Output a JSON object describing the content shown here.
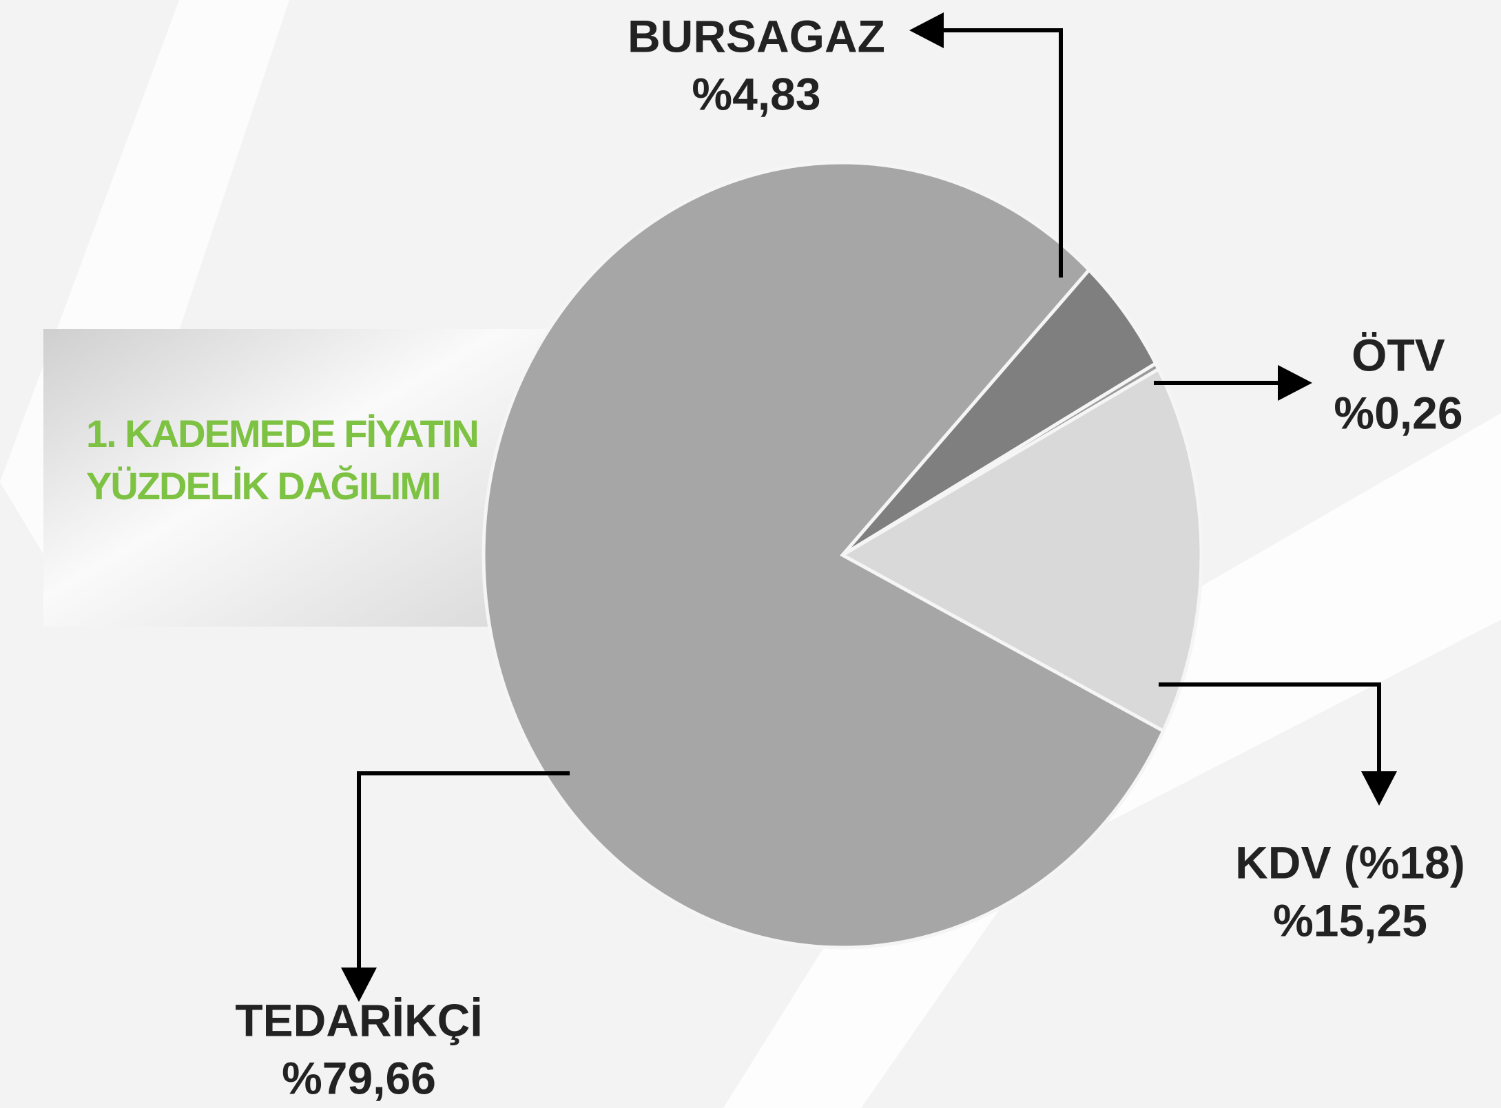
{
  "chart_data": {
    "type": "pie",
    "title": "1. KADEMEDE FİYATIN YÜZDELİK DAĞILIMI",
    "categories": [
      "BURSAGAZ",
      "ÖTV",
      "KDV (%18)",
      "TEDARİKÇİ"
    ],
    "values": [
      4.83,
      0.26,
      15.25,
      79.66
    ],
    "value_labels": [
      "%4,83",
      "%0,26",
      "%15,25",
      "%79,66"
    ],
    "colors": [
      "#7f7f7f",
      "#9a9a9a",
      "#d9d9d9",
      "#a6a6a6"
    ]
  }
}
